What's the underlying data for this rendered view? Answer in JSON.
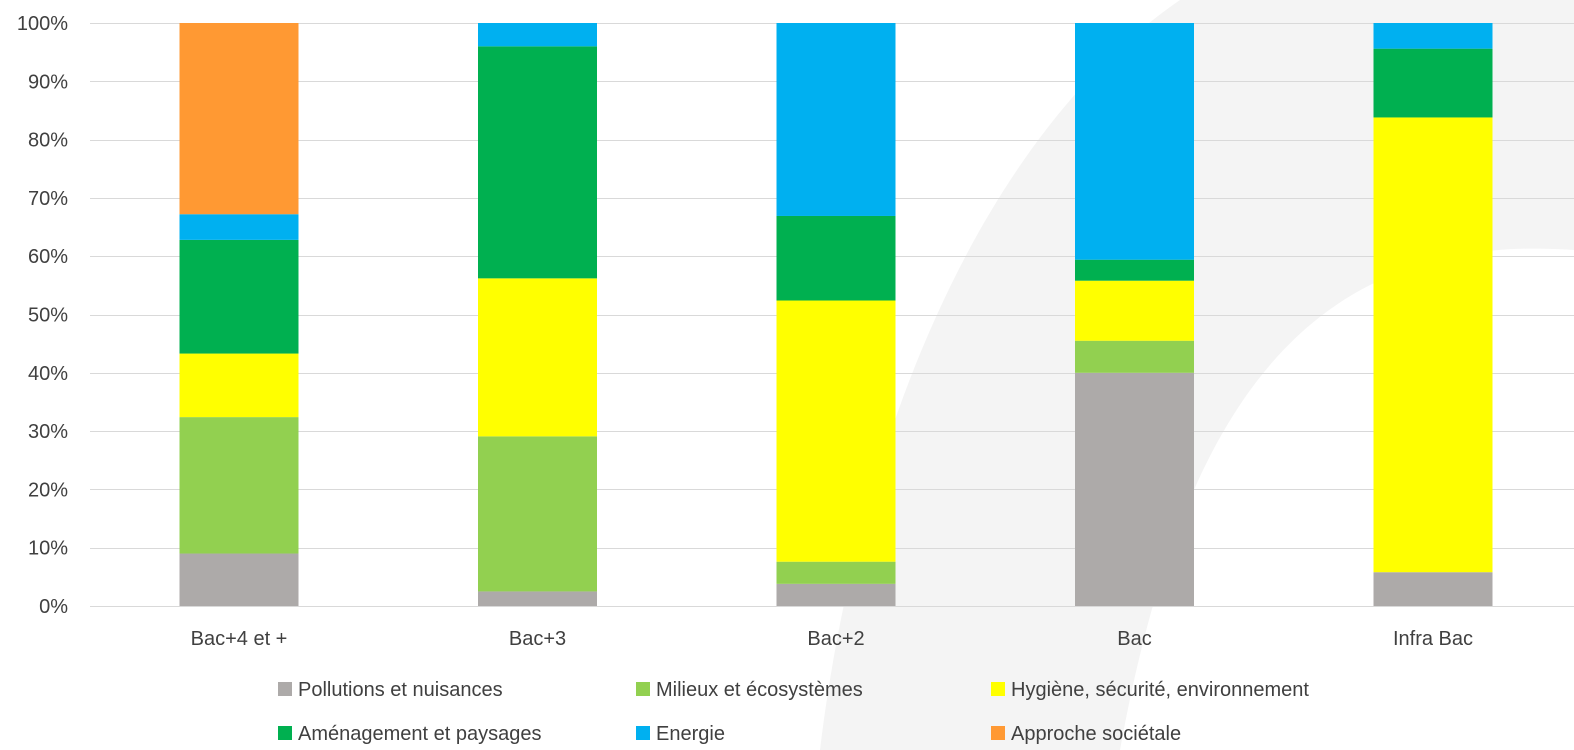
{
  "chart_data": {
    "type": "bar",
    "stacked": true,
    "categories": [
      "Bac+4 et +",
      "Bac+3",
      "Bac+2",
      "Bac",
      "Infra Bac"
    ],
    "ylim": [
      0,
      100
    ],
    "yticks": [
      "0%",
      "10%",
      "20%",
      "30%",
      "40%",
      "50%",
      "60%",
      "70%",
      "80%",
      "90%",
      "100%"
    ],
    "grid": true,
    "legend_position": "bottom",
    "series": [
      {
        "name": "Pollutions et nuisances",
        "color": "#ADAAA9",
        "values": [
          9,
          2.5,
          3.8,
          40,
          5.8
        ]
      },
      {
        "name": "Milieux et écosystèmes",
        "color": "#92D050",
        "values": [
          23.4,
          26.6,
          3.8,
          5.5,
          0
        ]
      },
      {
        "name": "Hygiène, sécurité, environnement",
        "color": "#FFFF00",
        "values": [
          10.9,
          27.1,
          44.8,
          10.3,
          78
        ]
      },
      {
        "name": "Aménagement et paysages",
        "color": "#00B050",
        "values": [
          19.5,
          39.8,
          14.5,
          3.6,
          11.8
        ]
      },
      {
        "name": "Energie",
        "color": "#00B0F0",
        "values": [
          4.4,
          4,
          33.1,
          40.6,
          4.4
        ]
      },
      {
        "name": "Approche sociétale",
        "color": "#FF9933",
        "values": [
          32.8,
          0,
          0,
          0,
          0
        ]
      }
    ]
  }
}
